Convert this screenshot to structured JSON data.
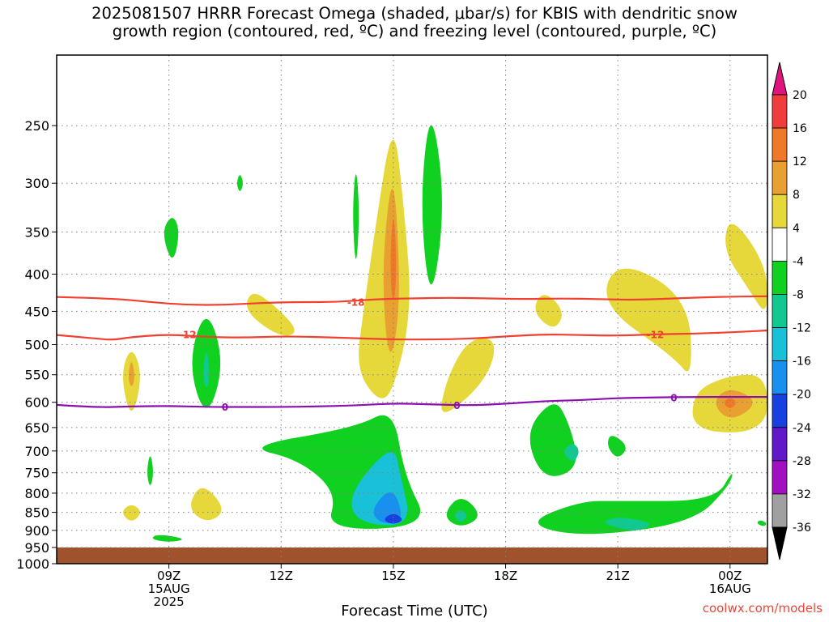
{
  "title": {
    "line1": "2025081507 HRRR Forecast Omega (shaded, μbar/s) for KBIS with dendritic snow",
    "line2": "growth region (contoured, red, ºC) and freezing level (contoured, purple, ºC)"
  },
  "x_axis_title": "Forecast Time (UTC)",
  "credit": "coolwx.com/models",
  "colors": {
    "ground": "#a0522d",
    "dgz_contour": "#f04030",
    "freezing_contour": "#8b10b0",
    "grid": "#808080"
  },
  "chart_data": {
    "type": "heatmap",
    "y_axis": {
      "label": "",
      "scale": "log-pressure",
      "units": "hPa",
      "ticks": [
        250,
        300,
        350,
        400,
        450,
        500,
        550,
        600,
        650,
        700,
        750,
        800,
        850,
        900,
        950,
        1000
      ],
      "range": [
        1000,
        200
      ],
      "inverted": true
    },
    "x_axis": {
      "label": "Forecast Time (UTC)",
      "units": "hours UTC from 2025-08-15 06Z",
      "range": [
        "15AUG 06Z",
        "16AUG 01Z"
      ],
      "ticks": [
        {
          "hour": "09Z",
          "lines": [
            "09Z",
            "15AUG",
            "2025"
          ]
        },
        {
          "hour": "12Z",
          "lines": [
            "12Z"
          ]
        },
        {
          "hour": "15Z",
          "lines": [
            "15Z"
          ]
        },
        {
          "hour": "18Z",
          "lines": [
            "18Z"
          ]
        },
        {
          "hour": "21Z",
          "lines": [
            "21Z"
          ]
        },
        {
          "hour": "00Z",
          "lines": [
            "00Z",
            "16AUG"
          ]
        }
      ]
    },
    "colorbar": {
      "units": "μbar/s",
      "labels": [
        "20",
        "16",
        "12",
        "8",
        "4",
        "-4",
        "-8",
        "-12",
        "-16",
        "-20",
        "-24",
        "-28",
        "-32",
        "-36"
      ],
      "bins": [
        {
          "range": "16 to 20",
          "color": "#f03c3c"
        },
        {
          "range": "12 to 16",
          "color": "#f07828"
        },
        {
          "range": "8 to 12",
          "color": "#e8a030"
        },
        {
          "range": "4 to 8",
          "color": "#e6d83a"
        },
        {
          "range": "-4 to 4",
          "color": "#ffffff"
        },
        {
          "range": "-8 to -4",
          "color": "#10d020"
        },
        {
          "range": "-12 to -8",
          "color": "#10c890"
        },
        {
          "range": "-16 to -12",
          "color": "#18c0d8"
        },
        {
          "range": "-20 to -16",
          "color": "#1890f0"
        },
        {
          "range": "-24 to -20",
          "color": "#1840e0"
        },
        {
          "range": "-28 to -24",
          "color": "#6018c8"
        },
        {
          "range": "-32 to -28",
          "color": "#a010c0"
        },
        {
          "range": "-36 to -32",
          "color": "#a0a0a0"
        }
      ],
      "top_arrow_color": "#e0147c",
      "bottom_arrow_color": "#000000"
    },
    "contours": [
      {
        "name": "",
        "value": -18,
        "label": "-18",
        "color": "#f04030",
        "points": [
          [
            6.0,
            430
          ],
          [
            7.5,
            432
          ],
          [
            8.5,
            437
          ],
          [
            9.5,
            441
          ],
          [
            10.5,
            441
          ],
          [
            11.5,
            438
          ],
          [
            12.5,
            437
          ],
          [
            13.5,
            437
          ],
          [
            14.5,
            433
          ],
          [
            15.5,
            432
          ],
          [
            16.5,
            431
          ],
          [
            17.5,
            432
          ],
          [
            18.5,
            433
          ],
          [
            19.5,
            432
          ],
          [
            20.5,
            433
          ],
          [
            21.5,
            434
          ],
          [
            22.5,
            432
          ],
          [
            23.5,
            430
          ],
          [
            25.0,
            429
          ]
        ]
      },
      {
        "name": "",
        "value": -12,
        "label": "-12",
        "color": "#f04030",
        "points": [
          [
            6.0,
            485
          ],
          [
            7.0,
            490
          ],
          [
            7.5,
            493
          ],
          [
            8.0,
            488
          ],
          [
            9.0,
            484
          ],
          [
            10.0,
            488
          ],
          [
            11.0,
            489
          ],
          [
            12.0,
            487
          ],
          [
            13.0,
            488
          ],
          [
            14.0,
            490
          ],
          [
            15.0,
            492
          ],
          [
            16.0,
            492
          ],
          [
            17.0,
            491
          ],
          [
            18.0,
            487
          ],
          [
            19.0,
            484
          ],
          [
            20.0,
            485
          ],
          [
            21.0,
            486
          ],
          [
            22.0,
            484
          ],
          [
            23.0,
            483
          ],
          [
            24.0,
            481
          ],
          [
            25.0,
            478
          ]
        ]
      },
      {
        "name": "",
        "value": 0,
        "label": "0",
        "color": "#8b10b0",
        "points": [
          [
            6.0,
            605
          ],
          [
            7.0,
            610
          ],
          [
            8.0,
            608
          ],
          [
            9.0,
            607
          ],
          [
            10.0,
            609
          ],
          [
            11.0,
            609
          ],
          [
            12.0,
            609
          ],
          [
            13.0,
            608
          ],
          [
            14.0,
            606
          ],
          [
            15.0,
            602
          ],
          [
            16.0,
            604
          ],
          [
            17.0,
            606
          ],
          [
            18.0,
            603
          ],
          [
            19.0,
            598
          ],
          [
            20.0,
            596
          ],
          [
            21.0,
            592
          ],
          [
            22.0,
            591
          ],
          [
            23.0,
            590
          ],
          [
            24.0,
            590
          ],
          [
            25.0,
            590
          ]
        ]
      }
    ],
    "shaded_regions": [
      {
        "value": 4,
        "points": [
          [
            8.0,
            500
          ],
          [
            7.7,
            550
          ],
          [
            8.0,
            640
          ],
          [
            8.3,
            550
          ]
        ]
      },
      {
        "value": 8,
        "points": [
          [
            8.0,
            520
          ],
          [
            7.9,
            555
          ],
          [
            8.0,
            575
          ],
          [
            8.1,
            555
          ]
        ]
      },
      {
        "value": -4,
        "points": [
          [
            9.1,
            330
          ],
          [
            8.8,
            350
          ],
          [
            9.1,
            390
          ],
          [
            9.3,
            350
          ]
        ]
      },
      {
        "value": -4,
        "points": [
          [
            10.9,
            290
          ],
          [
            10.8,
            300
          ],
          [
            10.9,
            310
          ],
          [
            11.0,
            300
          ]
        ]
      },
      {
        "value": -4,
        "points": [
          [
            10.0,
            440
          ],
          [
            9.5,
            530
          ],
          [
            10.0,
            640
          ],
          [
            10.5,
            530
          ]
        ]
      },
      {
        "value": -8,
        "points": [
          [
            10.0,
            500
          ],
          [
            9.9,
            550
          ],
          [
            10.0,
            580
          ],
          [
            10.1,
            550
          ]
        ]
      },
      {
        "value": 4,
        "points": [
          [
            11.2,
            420
          ],
          [
            11.0,
            450
          ],
          [
            12.0,
            490
          ],
          [
            12.5,
            480
          ],
          [
            11.8,
            440
          ]
        ]
      },
      {
        "value": 4,
        "points": [
          [
            9.8,
            780
          ],
          [
            9.5,
            840
          ],
          [
            10.0,
            880
          ],
          [
            10.5,
            850
          ],
          [
            10.2,
            800
          ]
        ]
      },
      {
        "value": 4,
        "points": [
          [
            8.0,
            825
          ],
          [
            7.7,
            850
          ],
          [
            8.0,
            880
          ],
          [
            8.3,
            850
          ]
        ]
      },
      {
        "value": -4,
        "points": [
          [
            8.5,
            700
          ],
          [
            8.4,
            750
          ],
          [
            8.5,
            790
          ],
          [
            8.6,
            750
          ]
        ]
      },
      {
        "value": -4,
        "points": [
          [
            8.7,
            910
          ],
          [
            8.5,
            925
          ],
          [
            9.0,
            935
          ],
          [
            9.5,
            925
          ]
        ]
      },
      {
        "value": -4,
        "points": [
          [
            14.0,
            280
          ],
          [
            13.9,
            330
          ],
          [
            14.0,
            400
          ],
          [
            14.1,
            330
          ]
        ]
      },
      {
        "value": 4,
        "points": [
          [
            15.0,
            240
          ],
          [
            14.5,
            350
          ],
          [
            14.2,
            450
          ],
          [
            14.0,
            540
          ],
          [
            14.6,
            600
          ],
          [
            15.0,
            580
          ],
          [
            15.5,
            450
          ],
          [
            15.3,
            330
          ]
        ]
      },
      {
        "value": 8,
        "points": [
          [
            15.0,
            280
          ],
          [
            14.7,
            380
          ],
          [
            14.8,
            500
          ],
          [
            15.0,
            520
          ],
          [
            15.2,
            420
          ]
        ]
      },
      {
        "value": 12,
        "points": [
          [
            15.0,
            320
          ],
          [
            14.9,
            390
          ],
          [
            15.0,
            450
          ],
          [
            15.1,
            390
          ]
        ]
      },
      {
        "value": -4,
        "points": [
          [
            16.0,
            230
          ],
          [
            15.7,
            320
          ],
          [
            16.0,
            450
          ],
          [
            16.4,
            320
          ]
        ]
      },
      {
        "value": 4,
        "points": [
          [
            17.0,
            490
          ],
          [
            16.4,
            560
          ],
          [
            16.2,
            640
          ],
          [
            17.5,
            560
          ],
          [
            17.8,
            490
          ]
        ]
      },
      {
        "value": -4,
        "points": [
          [
            14.0,
            650
          ],
          [
            11.0,
            690
          ],
          [
            12.5,
            720
          ],
          [
            13.5,
            800
          ],
          [
            13.2,
            900
          ],
          [
            16.0,
            890
          ],
          [
            15.3,
            760
          ],
          [
            15.0,
            610
          ]
        ]
      },
      {
        "value": -12,
        "points": [
          [
            15.0,
            680
          ],
          [
            13.8,
            800
          ],
          [
            14.0,
            880
          ],
          [
            15.5,
            890
          ],
          [
            15.2,
            760
          ]
        ]
      },
      {
        "value": -16,
        "points": [
          [
            15.0,
            780
          ],
          [
            14.4,
            840
          ],
          [
            14.6,
            880
          ],
          [
            15.3,
            880
          ]
        ]
      },
      {
        "value": -20,
        "points": [
          [
            15.0,
            850
          ],
          [
            14.7,
            870
          ],
          [
            15.0,
            885
          ],
          [
            15.3,
            870
          ]
        ]
      },
      {
        "value": -4,
        "points": [
          [
            16.8,
            800
          ],
          [
            16.3,
            860
          ],
          [
            16.8,
            895
          ],
          [
            17.4,
            860
          ]
        ]
      },
      {
        "value": -8,
        "points": [
          [
            16.8,
            840
          ],
          [
            16.6,
            860
          ],
          [
            16.8,
            880
          ],
          [
            17.0,
            860
          ]
        ]
      },
      {
        "value": -4,
        "points": [
          [
            19.3,
            590
          ],
          [
            18.5,
            660
          ],
          [
            19.0,
            770
          ],
          [
            20.0,
            740
          ],
          [
            19.7,
            640
          ]
        ]
      },
      {
        "value": -8,
        "points": [
          [
            19.8,
            680
          ],
          [
            19.5,
            700
          ],
          [
            19.8,
            730
          ],
          [
            20.0,
            700
          ]
        ]
      },
      {
        "value": 4,
        "points": [
          [
            19.0,
            420
          ],
          [
            18.7,
            450
          ],
          [
            19.3,
            480
          ],
          [
            19.6,
            450
          ]
        ]
      },
      {
        "value": 4,
        "points": [
          [
            21.0,
            380
          ],
          [
            20.5,
            440
          ],
          [
            22.5,
            520
          ],
          [
            23.0,
            560
          ],
          [
            22.9,
            430
          ]
        ]
      },
      {
        "value": -4,
        "points": [
          [
            20.8,
            660
          ],
          [
            20.7,
            690
          ],
          [
            21.0,
            720
          ],
          [
            21.3,
            690
          ]
        ]
      },
      {
        "value": -4,
        "points": [
          [
            20.0,
            820
          ],
          [
            18.5,
            880
          ],
          [
            20.0,
            920
          ],
          [
            23.0,
            880
          ],
          [
            24.0,
            780
          ],
          [
            24.1,
            740
          ],
          [
            23.6,
            820
          ],
          [
            21.0,
            820
          ]
        ]
      },
      {
        "value": -8,
        "points": [
          [
            21.0,
            860
          ],
          [
            20.5,
            880
          ],
          [
            21.5,
            905
          ],
          [
            22.0,
            880
          ]
        ]
      },
      {
        "value": 4,
        "points": [
          [
            24.0,
            330
          ],
          [
            23.8,
            370
          ],
          [
            24.5,
            420
          ],
          [
            25.0,
            460
          ],
          [
            25.0,
            390
          ]
        ]
      },
      {
        "value": 4,
        "points": [
          [
            24.0,
            550
          ],
          [
            23.0,
            580
          ],
          [
            23.0,
            660
          ],
          [
            25.0,
            660
          ],
          [
            25.0,
            550
          ]
        ]
      },
      {
        "value": 8,
        "points": [
          [
            24.0,
            570
          ],
          [
            23.5,
            600
          ],
          [
            24.0,
            640
          ],
          [
            24.8,
            600
          ]
        ]
      },
      {
        "value": 12,
        "points": [
          [
            24.0,
            590
          ],
          [
            23.8,
            600
          ],
          [
            24.0,
            615
          ],
          [
            24.2,
            600
          ]
        ]
      },
      {
        "value": -4,
        "points": [
          [
            24.8,
            870
          ],
          [
            24.7,
            880
          ],
          [
            24.9,
            890
          ],
          [
            25.0,
            880
          ]
        ]
      }
    ],
    "ground": {
      "from_hpa": 950,
      "to_hpa": 1000
    }
  }
}
